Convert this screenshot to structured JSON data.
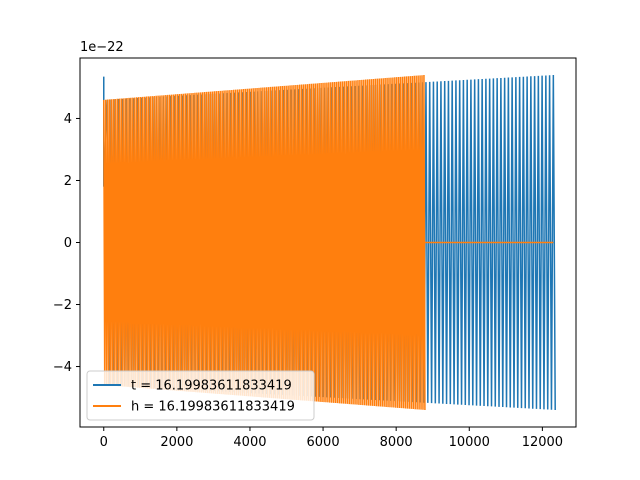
{
  "chart_data": {
    "type": "line",
    "title": "",
    "xlabel": "",
    "ylabel": "",
    "offset_label": "1e−22",
    "xlim": [
      -650,
      12920
    ],
    "ylim": [
      -5.95,
      5.95
    ],
    "xticks": [
      0,
      2000,
      4000,
      6000,
      8000,
      10000,
      12000
    ],
    "yticks": [
      -4,
      -2,
      0,
      2,
      4
    ],
    "ytick_labels": [
      "−4",
      "−2",
      "0",
      "2",
      "4"
    ],
    "grid": false,
    "legend_position": "lower-left",
    "series": [
      {
        "name": "t = 16.19983611833419",
        "color": "#1f77b4",
        "x_range": [
          0,
          12300
        ],
        "amplitude_start": 4.6,
        "amplitude_end": 5.4,
        "initial_peak": 5.35,
        "cycles": 120
      },
      {
        "name": "h = 16.19983611833419",
        "color": "#ff7f0e",
        "x_range": [
          0,
          8760
        ],
        "amplitude_start": 4.6,
        "amplitude_end": 5.4,
        "cycles": 165,
        "flat_after": [
          8760,
          12300
        ],
        "flat_value": 0
      }
    ]
  }
}
